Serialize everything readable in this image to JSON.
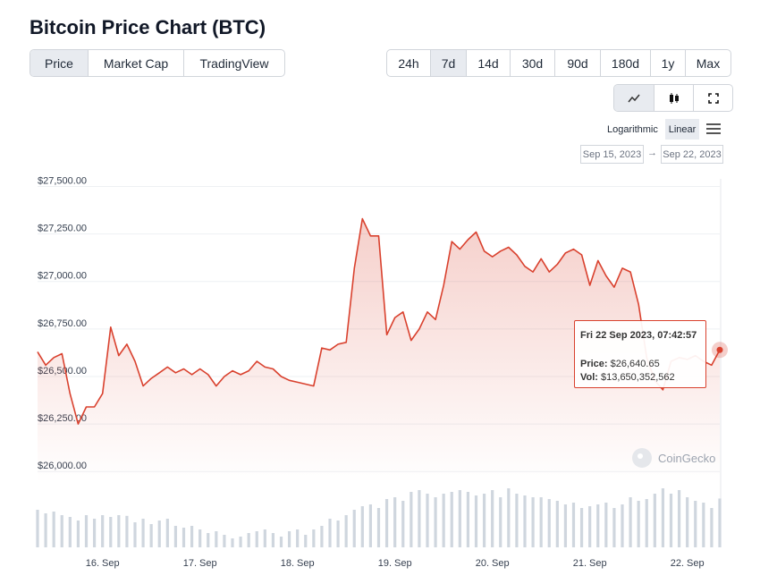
{
  "header": {
    "title": "Bitcoin Price Chart (BTC)"
  },
  "tabs": [
    "Price",
    "Market Cap",
    "TradingView"
  ],
  "ranges": [
    "24h",
    "7d",
    "14d",
    "30d",
    "90d",
    "180d",
    "1y",
    "Max"
  ],
  "scale_options": [
    "Logarithmic",
    "Linear"
  ],
  "date_range": {
    "from": "Sep 15, 2023",
    "to": "Sep 22, 2023"
  },
  "watermark": "CoinGecko",
  "tooltip": {
    "time": "Fri 22 Sep 2023, 07:42:57",
    "price_label": "Price:",
    "price": "$26,640.65",
    "vol_label": "Vol:",
    "vol": "$13,650,352,562"
  },
  "chart_data": {
    "type": "line",
    "categories": [
      null,
      null,
      null,
      null,
      null,
      null,
      null,
      null,
      "16. Sep",
      null,
      null,
      null,
      null,
      null,
      null,
      null,
      null,
      null,
      null,
      null,
      "17. Sep",
      null,
      null,
      null,
      null,
      null,
      null,
      null,
      null,
      null,
      null,
      null,
      "18. Sep",
      null,
      null,
      null,
      null,
      null,
      null,
      null,
      null,
      null,
      null,
      null,
      "19. Sep",
      null,
      null,
      null,
      null,
      null,
      null,
      null,
      null,
      null,
      null,
      null,
      "20. Sep",
      null,
      null,
      null,
      null,
      null,
      null,
      null,
      null,
      null,
      null,
      null,
      "21. Sep",
      null,
      null,
      null,
      null,
      null,
      null,
      null,
      null,
      null,
      null,
      null,
      "22. Sep",
      null,
      null,
      null,
      null
    ],
    "series": [
      {
        "name": "Price",
        "color": "#d9412e",
        "values": [
          26630,
          26560,
          26600,
          26620,
          26410,
          26250,
          26340,
          26340,
          26410,
          26760,
          26610,
          26670,
          26580,
          26450,
          26490,
          26520,
          26550,
          26520,
          26540,
          26510,
          26540,
          26510,
          26450,
          26500,
          26530,
          26510,
          26530,
          26580,
          26550,
          26540,
          26500,
          26480,
          26470,
          26460,
          26450,
          26650,
          26640,
          26670,
          26680,
          27070,
          27330,
          27240,
          27240,
          26720,
          26810,
          26840,
          26690,
          26750,
          26840,
          26800,
          26980,
          27210,
          27170,
          27220,
          27260,
          27160,
          27130,
          27160,
          27180,
          27140,
          27080,
          27050,
          27120,
          27050,
          27090,
          27150,
          27170,
          27140,
          26980,
          27110,
          27030,
          26970,
          27070,
          27050,
          26880,
          26600,
          26480,
          26430,
          26580,
          26600,
          26590,
          26610,
          26580,
          26560,
          26640
        ]
      },
      {
        "name": "Vol",
        "color": "#cfd6de",
        "values": [
          10500000000.0,
          9500000000.0,
          10000000000.0,
          9000000000.0,
          8500000000.0,
          7500000000.0,
          9000000000.0,
          8000000000.0,
          9000000000.0,
          8500000000.0,
          9000000000.0,
          8800000000.0,
          7000000000.0,
          8000000000.0,
          6500000000.0,
          7500000000.0,
          8000000000.0,
          6000000000.0,
          5500000000.0,
          6000000000.0,
          5000000000.0,
          4000000000.0,
          4500000000.0,
          3500000000.0,
          2500000000.0,
          3000000000.0,
          4000000000.0,
          4500000000.0,
          5000000000.0,
          4000000000.0,
          3000000000.0,
          4500000000.0,
          5000000000.0,
          3500000000.0,
          5000000000.0,
          6000000000.0,
          8000000000.0,
          7500000000.0,
          9000000000.0,
          10500000000.0,
          11500000000.0,
          12000000000.0,
          11000000000.0,
          13500000000.0,
          14000000000.0,
          13000000000.0,
          15500000000.0,
          16000000000.0,
          15000000000.0,
          14000000000.0,
          15000000000.0,
          15500000000.0,
          16000000000.0,
          15500000000.0,
          14500000000.0,
          15000000000.0,
          16000000000.0,
          14000000000.0,
          16500000000.0,
          15000000000.0,
          14500000000.0,
          14000000000.0,
          14000000000.0,
          13500000000.0,
          13000000000.0,
          12000000000.0,
          12500000000.0,
          11000000000.0,
          11500000000.0,
          12000000000.0,
          12500000000.0,
          11000000000.0,
          12000000000.0,
          14000000000.0,
          13000000000.0,
          13500000000.0,
          15000000000.0,
          16500000000.0,
          15000000000.0,
          16000000000.0,
          14000000000.0,
          13000000000.0,
          12500000000.0,
          11000000000.0,
          13650000000.0
        ]
      }
    ],
    "ylim": [
      25940,
      27540
    ],
    "yticks": [
      {
        "value": 26000,
        "label": "$26,000.00"
      },
      {
        "value": 26250,
        "label": "$26,250.00"
      },
      {
        "value": 26500,
        "label": "$26,500.00"
      },
      {
        "value": 26750,
        "label": "$26,750.00"
      },
      {
        "value": 27000,
        "label": "$27,000.00"
      },
      {
        "value": 27250,
        "label": "$27,250.00"
      },
      {
        "value": 27500,
        "label": "$27,500.00"
      }
    ],
    "grid": true
  }
}
